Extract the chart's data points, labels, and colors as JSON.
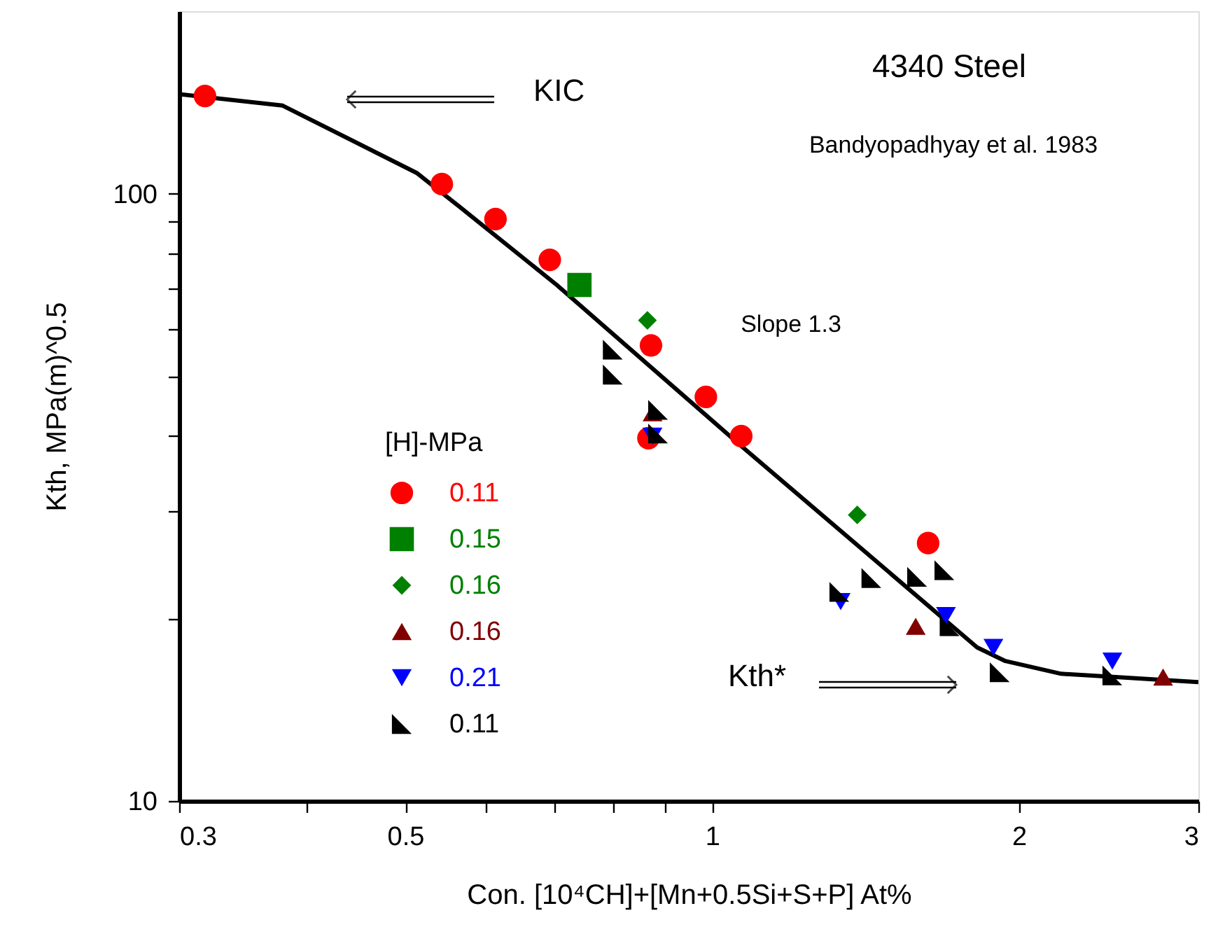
{
  "chart_data": {
    "type": "scatter",
    "xlabel": "Con. [10⁴CH]+[Mn+0.5Si+S+P] At%",
    "ylabel": "Kth, MPa(m)^0.5",
    "legend_title": "[H]-MPa",
    "legend": "left",
    "log": "xy",
    "grid": false,
    "xlim": [
      0.3,
      3
    ],
    "ylim": [
      10,
      200
    ],
    "xticks": [
      0.3,
      {
        "value": 0.4,
        "label": null
      },
      0.5,
      {
        "value": 0.6,
        "label": null
      },
      {
        "value": 0.7,
        "label": null
      },
      {
        "value": 0.8,
        "label": null
      },
      {
        "value": 0.9,
        "label": null
      },
      1,
      2,
      3
    ],
    "yticks": [
      10,
      {
        "value": 20,
        "label": null
      },
      {
        "value": 30,
        "label": null
      },
      {
        "value": 40,
        "label": null
      },
      {
        "value": 50,
        "label": null
      },
      {
        "value": 60,
        "label": null
      },
      {
        "value": 70,
        "label": null
      },
      {
        "value": 80,
        "label": null
      },
      {
        "value": 90,
        "label": null
      },
      100
    ],
    "annotations": [
      "4340 Steel",
      "Bandyopadhyay et al. 1983",
      "Slope 1.3",
      "KIC",
      "Kth*"
    ],
    "series": [
      {
        "name": "0.11",
        "color": "#ff0000",
        "marker": "circle",
        "x": [
          0.318,
          0.543,
          0.613,
          0.693,
          0.866,
          0.871,
          0.986,
          1.068,
          1.629
        ],
        "values": [
          145,
          103.8,
          90.9,
          77.9,
          39.6,
          56.3,
          46.3,
          39.9,
          26.6
        ]
      },
      {
        "name": "0.15",
        "color": "#008000",
        "marker": "square",
        "x": [
          0.741
        ],
        "values": [
          70.8
        ]
      },
      {
        "name": "0.16",
        "color": "#008000",
        "marker": "diamond",
        "x": [
          0.864,
          1.388
        ],
        "values": [
          61.9,
          29.6
        ]
      },
      {
        "name": "0.16",
        "color": "#800000",
        "marker": "triangle",
        "x": [
          0.874,
          1.584,
          2.77
        ],
        "values": [
          43.6,
          19.4,
          16.0
        ]
      },
      {
        "name": "0.21",
        "color": "#0000ff",
        "marker": "triangle-down",
        "x": [
          0.874,
          1.337,
          1.696,
          1.888,
          2.47
        ],
        "values": [
          39.9,
          21.3,
          20.2,
          17.9,
          17.0
        ]
      },
      {
        "name": "0.11",
        "color": "#000000",
        "x": [
          0.799,
          0.799,
          0.885,
          0.885,
          1.333,
          1.433,
          1.589,
          1.69,
          1.71,
          1.915,
          2.47
        ],
        "values": [
          55.4,
          50.4,
          44.1,
          40.3,
          22.1,
          23.3,
          23.4,
          24.0,
          19.4,
          16.3,
          16.1
        ]
      },
      {
        "type": "line",
        "color": "#000000",
        "line_style": "solid",
        "marker": "none",
        "x": [
          0.3,
          0.379,
          0.513,
          0.565,
          0.704,
          1.065,
          1.82,
          1.94,
          2.2,
          2.49,
          3.0
        ],
        "values": [
          146,
          139.8,
          108.3,
          95.3,
          70.8,
          38.6,
          17.9,
          17.0,
          16.2,
          16.0,
          15.7
        ]
      }
    ]
  }
}
